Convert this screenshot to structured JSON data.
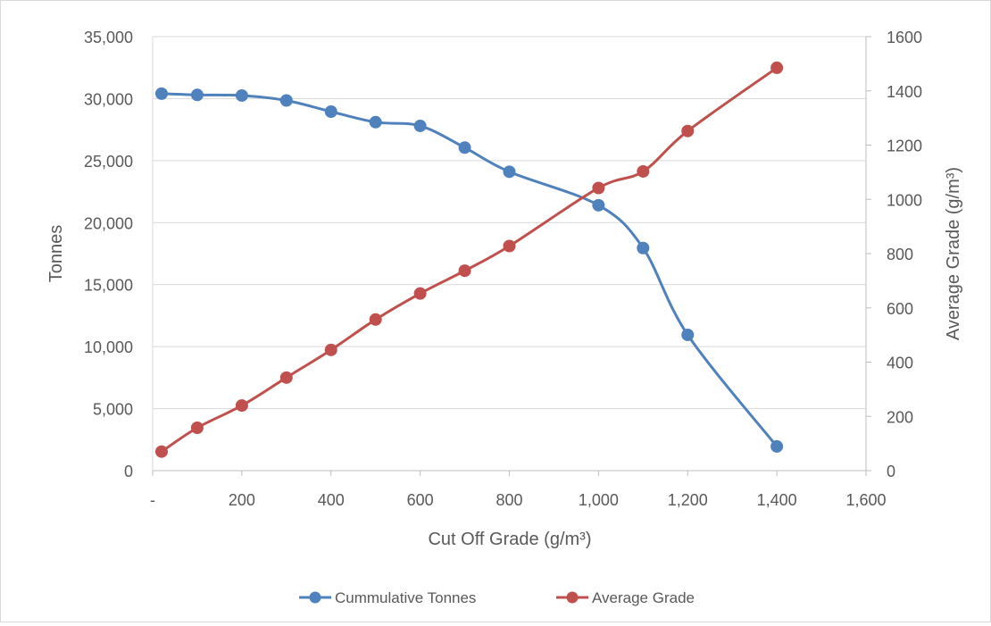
{
  "chart_data": {
    "type": "line",
    "title": "",
    "xlabel": "Cut Off Grade (g/m³)",
    "ylabel": "Tonnes",
    "y2label": "Average Grade (g/m³)",
    "xlim": [
      0,
      1600
    ],
    "ylim": [
      0,
      35000
    ],
    "y2lim": [
      0,
      1600
    ],
    "x_ticks": [
      0,
      200,
      400,
      600,
      800,
      1000,
      1200,
      1400,
      1600
    ],
    "x_tick_labels": [
      "-",
      "200",
      "400",
      "600",
      "800",
      "1,000",
      "1,200",
      "1,400",
      "1,600"
    ],
    "y_ticks": [
      0,
      5000,
      10000,
      15000,
      20000,
      25000,
      30000,
      35000
    ],
    "y_tick_labels": [
      "0",
      "5,000",
      "10,000",
      "15,000",
      "20,000",
      "25,000",
      "30,000",
      "35,000"
    ],
    "y2_ticks": [
      0,
      200,
      400,
      600,
      800,
      1000,
      1200,
      1400,
      1600
    ],
    "y2_tick_labels": [
      "0",
      "200",
      "400",
      "600",
      "800",
      "1000",
      "1200",
      "1400",
      "1600"
    ],
    "grid": "horizontal",
    "legend": "bottom",
    "series": [
      {
        "name": "Cummulative Tonnes",
        "axis": "left",
        "color": "#4f81bd",
        "x": [
          20,
          100,
          200,
          300,
          400,
          500,
          600,
          700,
          800,
          1000,
          1100,
          1200,
          1400
        ],
        "values": [
          30400,
          30300,
          30250,
          29850,
          28950,
          28100,
          27800,
          26050,
          24100,
          21400,
          17950,
          10950,
          1950
        ]
      },
      {
        "name": "Average Grade",
        "axis": "right",
        "color": "#c0504d",
        "x": [
          20,
          100,
          200,
          300,
          400,
          500,
          600,
          700,
          800,
          1000,
          1100,
          1200,
          1400
        ],
        "values": [
          70,
          158,
          240,
          343,
          445,
          557,
          653,
          737,
          828,
          1042,
          1103,
          1252,
          1485
        ]
      }
    ]
  }
}
